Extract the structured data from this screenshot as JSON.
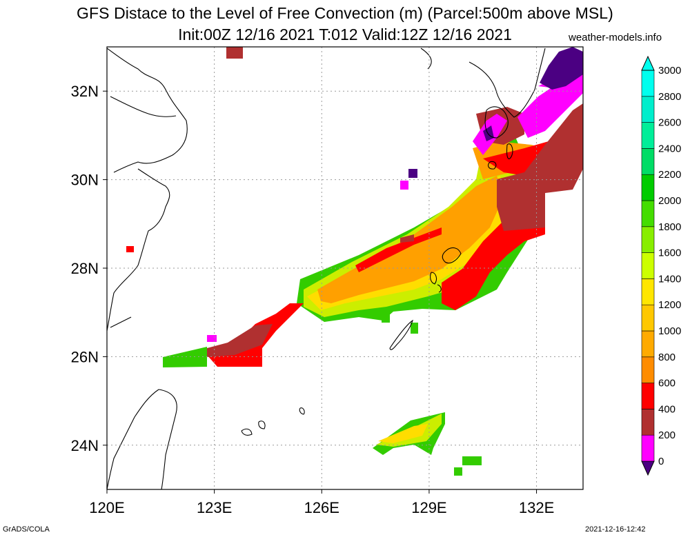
{
  "header": {
    "title": "GFS Distace to the Level of Free Convection (m) (Parcel:500m above MSL)",
    "subtitle": "Init:00Z 12/16 2021 T:012 Valid:12Z 12/16 2021",
    "site": "weather-models.info"
  },
  "footer": {
    "left": "GrADS/COLA",
    "right": "2021-12-16-12:42"
  },
  "map": {
    "lon_range": [
      120,
      133.3
    ],
    "lat_range": [
      23,
      33
    ],
    "x_ticks": [
      {
        "value": 120,
        "label": "120E"
      },
      {
        "value": 123,
        "label": "123E"
      },
      {
        "value": 126,
        "label": "126E"
      },
      {
        "value": 129,
        "label": "129E"
      },
      {
        "value": 132,
        "label": "132E"
      }
    ],
    "y_ticks": [
      {
        "value": 24,
        "label": "24N"
      },
      {
        "value": 26,
        "label": "26N"
      },
      {
        "value": 28,
        "label": "28N"
      },
      {
        "value": 30,
        "label": "30N"
      },
      {
        "value": 32,
        "label": "32N"
      }
    ],
    "grid": true
  },
  "colorbar": {
    "levels": [
      "0",
      "200",
      "400",
      "600",
      "800",
      "1000",
      "1200",
      "1400",
      "1600",
      "1800",
      "2000",
      "2200",
      "2400",
      "2600",
      "2800",
      "3000"
    ],
    "colors": [
      "#4b0082",
      "#ff00ff",
      "#b03030",
      "#ff0000",
      "#ff8c00",
      "#ffaa00",
      "#ffc800",
      "#ffe600",
      "#ccff00",
      "#88ee00",
      "#44dd00",
      "#00cc00",
      "#00dd66",
      "#00ee99",
      "#00eecc",
      "#00ffee"
    ]
  }
}
